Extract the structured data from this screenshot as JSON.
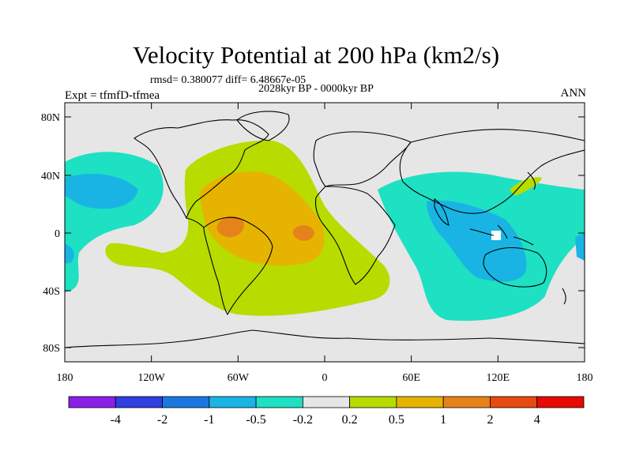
{
  "title": "Velocity Potential at 200 hPa (km2/s)",
  "stats": "rmsd= 0.380077 diff= 6.48667e-05",
  "period": "2028kyr BP - 0000kyr BP",
  "experiment": "Expt = tfmfD-tfmea",
  "season": "ANN",
  "lat_ticks": [
    "80N",
    "40N",
    "0",
    "40S",
    "80S"
  ],
  "lon_ticks": [
    "180",
    "120W",
    "60W",
    "0",
    "60E",
    "120E",
    "180"
  ],
  "colorbar": {
    "colors": [
      "#8b1fe8",
      "#2f3fe0",
      "#1a78e0",
      "#19b4e4",
      "#1ee0c2",
      "#e6e6e6",
      "#b8dc00",
      "#e6b400",
      "#e6821a",
      "#e64a10",
      "#e60a00"
    ],
    "labels": [
      "-4",
      "-2",
      "-1",
      "-0.5",
      "-0.2",
      "0.2",
      "0.5",
      "1",
      "2",
      "4"
    ]
  },
  "colors": {
    "background": "#e6e6e6",
    "coast": "#000000"
  }
}
